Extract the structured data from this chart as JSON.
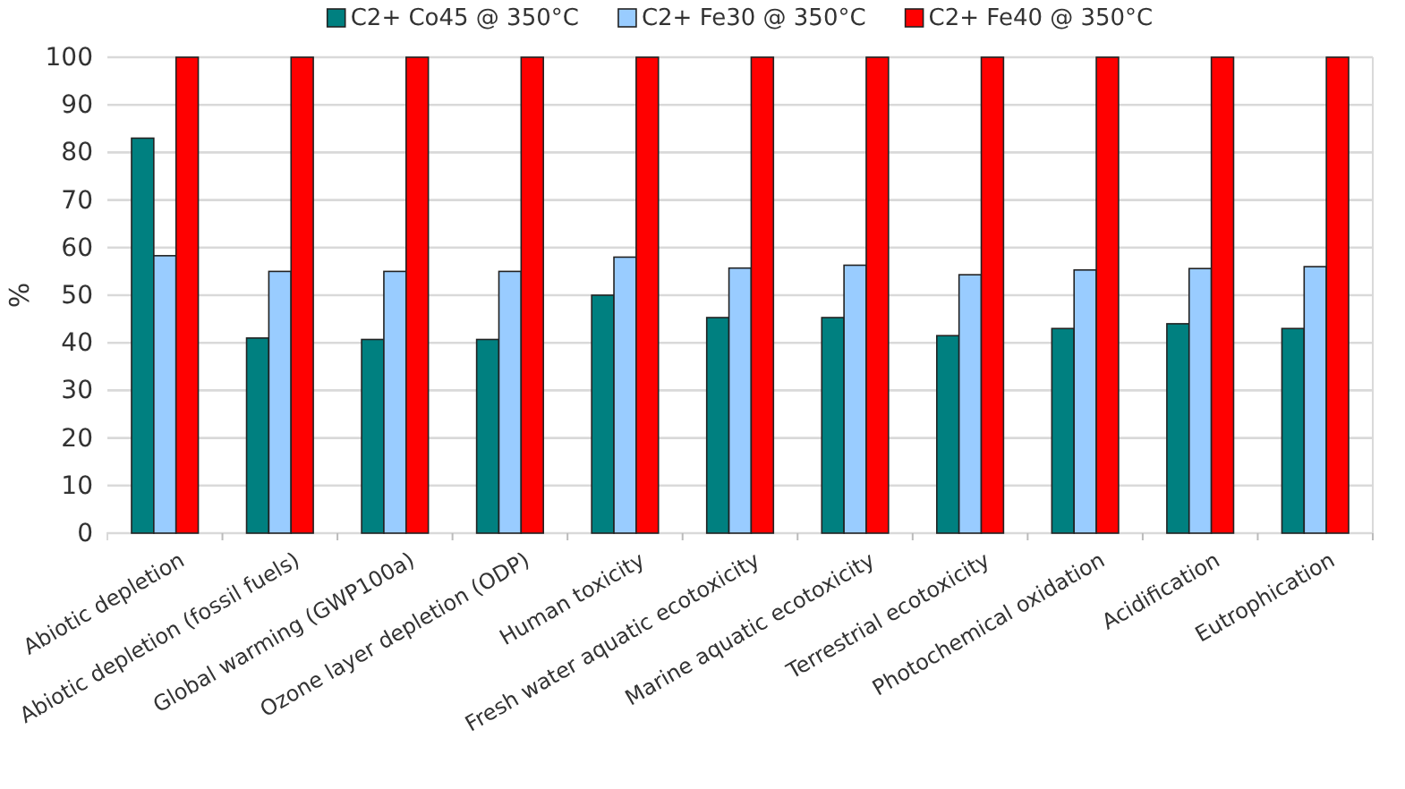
{
  "chart_data": {
    "type": "bar",
    "ylabel": "%",
    "categories": [
      "Abiotic depletion",
      "Abiotic depletion (fossil fuels)",
      "Global warming (GWP100a)",
      "Ozone layer depletion (ODP)",
      "Human toxicity",
      "Fresh water aquatic ecotoxicity",
      "Marine aquatic ecotoxicity",
      "Terrestrial ecotoxicity",
      "Photochemical oxidation",
      "Acidification",
      "Eutrophication"
    ],
    "series": [
      {
        "name": "C2+ Co45 @ 350°C",
        "color": "#008080",
        "values": [
          83,
          41,
          40.7,
          40.7,
          50,
          45.3,
          45.3,
          41.5,
          43,
          44,
          43
        ]
      },
      {
        "name": "C2+ Fe30 @ 350°C",
        "color": "#99ccff",
        "values": [
          58.3,
          55,
          55,
          55,
          58,
          55.7,
          56.3,
          54.3,
          55.3,
          55.6,
          56
        ]
      },
      {
        "name": "C2+ Fe40 @ 350°C",
        "color": "#ff0000",
        "values": [
          100,
          100,
          100,
          100,
          100,
          100,
          100,
          100,
          100,
          100,
          100
        ]
      }
    ],
    "ylim": [
      0,
      100
    ],
    "yticks": [
      0,
      10,
      20,
      30,
      40,
      50,
      60,
      70,
      80,
      90,
      100
    ],
    "grid": "y",
    "legend": "top"
  }
}
